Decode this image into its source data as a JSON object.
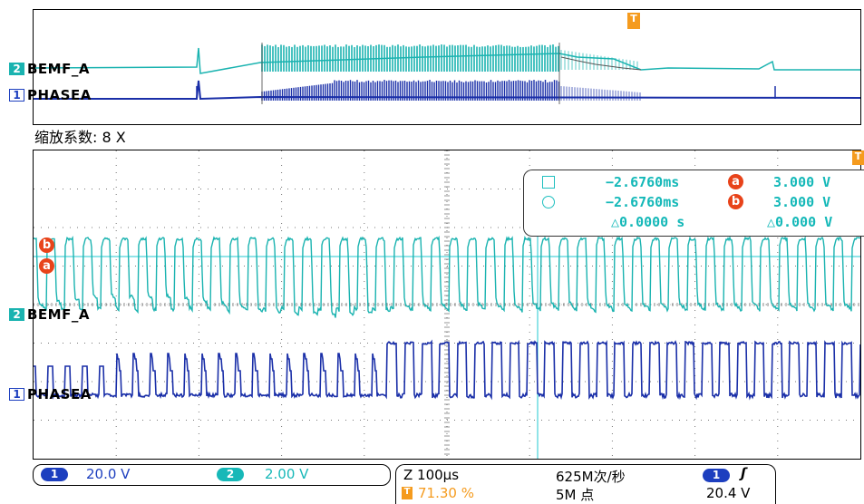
{
  "overview": {
    "ch2_label": "BEMF_A",
    "ch1_label": "PHASEA",
    "ch2_marker": "2",
    "ch1_marker": "1",
    "trigger_marker": "T"
  },
  "zoom": {
    "label": "缩放系数: 8 X"
  },
  "main": {
    "ch2_label": "BEMF_A",
    "ch1_label": "PHASEA",
    "ch2_marker": "2",
    "ch1_marker": "1",
    "cursor_a_tag": "a",
    "cursor_b_tag": "b",
    "trigger_marker": "T"
  },
  "cursors": {
    "row1": {
      "icon": "square-cursor-icon",
      "time": "−2.6760ms",
      "tag": "a",
      "value": "3.000 V"
    },
    "row2": {
      "icon": "circle-cursor-icon",
      "time": "−2.6760ms",
      "tag": "b",
      "value": "3.000 V"
    },
    "row3": {
      "delta_time": "△0.0000 s",
      "delta_value": "△0.000 V"
    }
  },
  "status": {
    "ch1": {
      "number": "1",
      "scale": "20.0 V",
      "color": "#1d3fbf"
    },
    "ch2": {
      "number": "2",
      "scale": "2.00 V",
      "color": "#17b8b8"
    },
    "timebase": "Z 100µs",
    "trigger_position": "71.30 %",
    "sample_rate": "625M次/秒",
    "record_length": "5M 点",
    "trigger_channel": "1",
    "trigger_slope": "rising-edge-icon",
    "trigger_level": "20.4 V"
  },
  "colors": {
    "ch1": "#1a2fa8",
    "ch2": "#1ab3b0",
    "cursor": "#20c8d0",
    "trigger": "#f59b1e",
    "cursor_tag": "#e8431a"
  }
}
